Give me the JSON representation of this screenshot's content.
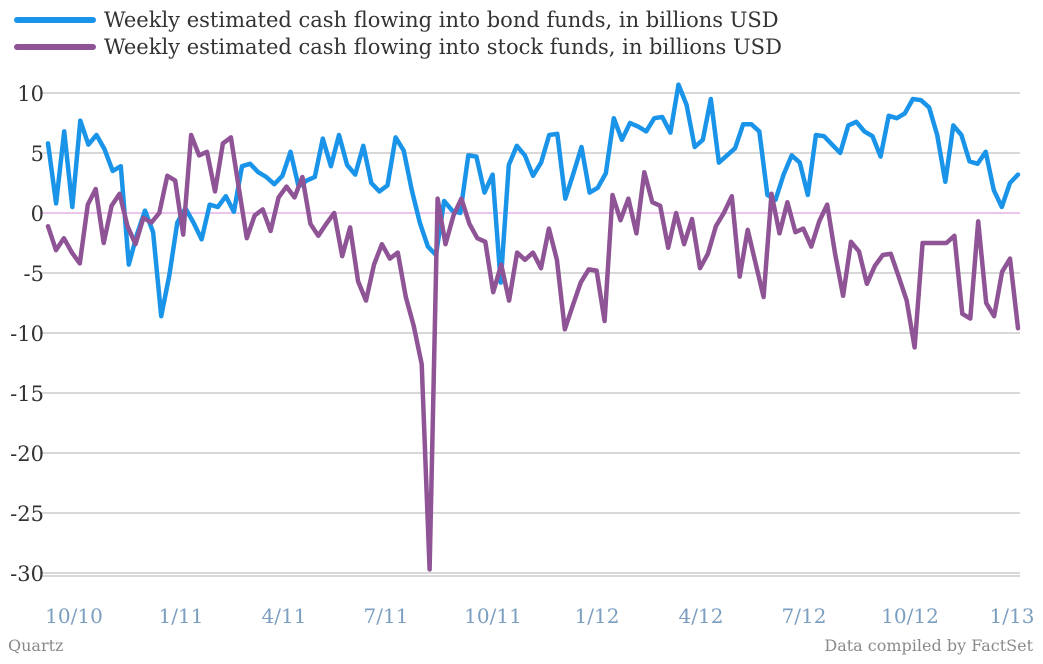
{
  "chart_data": {
    "type": "line",
    "title": "",
    "xlabel": "",
    "ylabel": "",
    "ylim": [
      -31,
      12
    ],
    "yticks": [
      10,
      5,
      0,
      -5,
      -10,
      -15,
      -20,
      -25,
      -30
    ],
    "x_tick_labels": [
      "10/10",
      "1/11",
      "4/11",
      "7/11",
      "10/11",
      "1/12",
      "4/12",
      "7/12",
      "10/12",
      "1/13"
    ],
    "grid": true,
    "legend_position": "top-left",
    "series": [
      {
        "name": "Weekly estimated cash flowing into bond funds, in billions USD",
        "color": "#1a94e8",
        "values": [
          5.8,
          0.8,
          6.8,
          0.5,
          7.7,
          5.7,
          6.5,
          5.3,
          3.5,
          3.9,
          -4.3,
          -1.8,
          0.2,
          -1.6,
          -8.6,
          -5.2,
          -0.8,
          0.4,
          -0.8,
          -2.2,
          0.7,
          0.5,
          1.4,
          0.1,
          3.9,
          4.1,
          3.4,
          3.0,
          2.4,
          3.1,
          5.1,
          2.2,
          2.7,
          3.0,
          6.2,
          3.9,
          6.5,
          4.0,
          3.2,
          5.6,
          2.5,
          1.8,
          2.3,
          6.3,
          5.2,
          1.9,
          -0.8,
          -2.8,
          -3.5,
          1.0,
          0.2,
          0.0,
          4.8,
          4.7,
          1.7,
          3.2,
          -5.8,
          4.0,
          5.6,
          4.8,
          3.1,
          4.2,
          6.5,
          6.6,
          1.2,
          3.3,
          5.5,
          1.7,
          2.1,
          3.3,
          7.9,
          6.1,
          7.5,
          7.2,
          6.8,
          7.9,
          8.0,
          6.7,
          10.7,
          9.0,
          5.5,
          6.1,
          9.5,
          4.2,
          4.8,
          5.4,
          7.4,
          7.4,
          6.8,
          1.5,
          1.1,
          3.2,
          4.8,
          4.2,
          1.5,
          6.5,
          6.4,
          5.7,
          5.0,
          7.3,
          7.6,
          6.8,
          6.4,
          4.7,
          8.1,
          7.9,
          8.3,
          9.5,
          9.4,
          8.8,
          6.5,
          2.6,
          7.3,
          6.5,
          4.3,
          4.1,
          5.1,
          1.9,
          0.5,
          2.5,
          3.2
        ]
      },
      {
        "name": "Weekly estimated cash flowing into stock funds, in billions USD",
        "color": "#8e5495",
        "values": [
          -1.1,
          -3.1,
          -2.1,
          -3.3,
          -4.2,
          0.7,
          2.0,
          -2.5,
          0.6,
          1.6,
          -1.1,
          -2.6,
          -0.4,
          -0.8,
          0.0,
          3.1,
          2.7,
          -1.8,
          6.5,
          4.8,
          5.1,
          1.8,
          5.8,
          6.3,
          2.1,
          -2.1,
          -0.2,
          0.3,
          -1.5,
          1.3,
          2.2,
          1.3,
          3.0,
          -0.9,
          -1.9,
          -0.9,
          0.0,
          -3.6,
          -1.2,
          -5.7,
          -7.3,
          -4.3,
          -2.6,
          -3.8,
          -3.3,
          -7.0,
          -9.4,
          -12.6,
          -29.7,
          1.2,
          -2.6,
          -0.2,
          1.2,
          -0.9,
          -2.1,
          -2.4,
          -6.6,
          -4.3,
          -7.3,
          -3.3,
          -3.9,
          -3.3,
          -4.6,
          -1.3,
          -3.9,
          -9.7,
          -7.7,
          -5.8,
          -4.7,
          -4.8,
          -9.0,
          1.5,
          -0.6,
          1.2,
          -1.7,
          3.4,
          0.9,
          0.6,
          -2.9,
          0.0,
          -2.6,
          -0.5,
          -4.6,
          -3.4,
          -1.1,
          0.0,
          1.4,
          -5.3,
          -1.4,
          -4.2,
          -7.0,
          1.6,
          -1.7,
          0.9,
          -1.6,
          -1.3,
          -2.8,
          -0.7,
          0.7,
          -3.4,
          -6.9,
          -2.4,
          -3.2,
          -5.9,
          -4.4,
          -3.5,
          -3.4,
          -5.3,
          -7.3,
          -11.2,
          -2.5,
          -2.5,
          -2.5,
          -2.5,
          -1.9,
          -8.4,
          -8.8,
          -0.7,
          -7.5,
          -8.6,
          -4.9,
          -3.8,
          -9.6
        ]
      }
    ]
  },
  "axis_text_color": "#7b9ec0",
  "grid_color": "#b0b0b0",
  "zero_line_color": "#d98ad9",
  "footer": {
    "source_left": "Quartz",
    "source_right": "Data compiled by FactSet"
  }
}
